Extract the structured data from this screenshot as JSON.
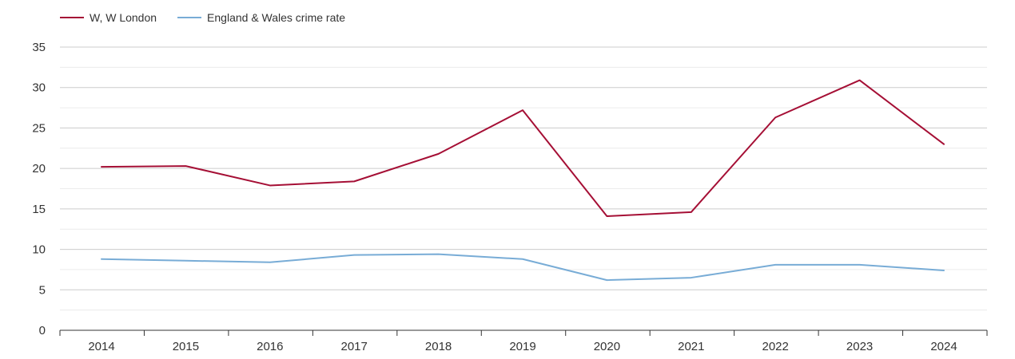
{
  "chart_data": {
    "type": "line",
    "title": "",
    "xlabel": "",
    "ylabel": "",
    "x": [
      "2014",
      "2015",
      "2016",
      "2017",
      "2018",
      "2019",
      "2020",
      "2021",
      "2022",
      "2023",
      "2024"
    ],
    "ylim": [
      0,
      35
    ],
    "yticks": [
      0,
      5,
      10,
      15,
      20,
      25,
      30,
      35
    ],
    "grid": true,
    "legend_position": "top-left",
    "series": [
      {
        "name": "W, W London",
        "color": "#a50f35",
        "values": [
          20.2,
          20.3,
          17.9,
          18.4,
          21.8,
          27.2,
          14.1,
          14.6,
          26.3,
          30.9,
          23.0
        ]
      },
      {
        "name": "England & Wales crime rate",
        "color": "#78acd6",
        "values": [
          8.8,
          8.6,
          8.4,
          9.3,
          9.4,
          8.8,
          6.2,
          6.5,
          8.1,
          8.1,
          7.4
        ]
      }
    ]
  }
}
